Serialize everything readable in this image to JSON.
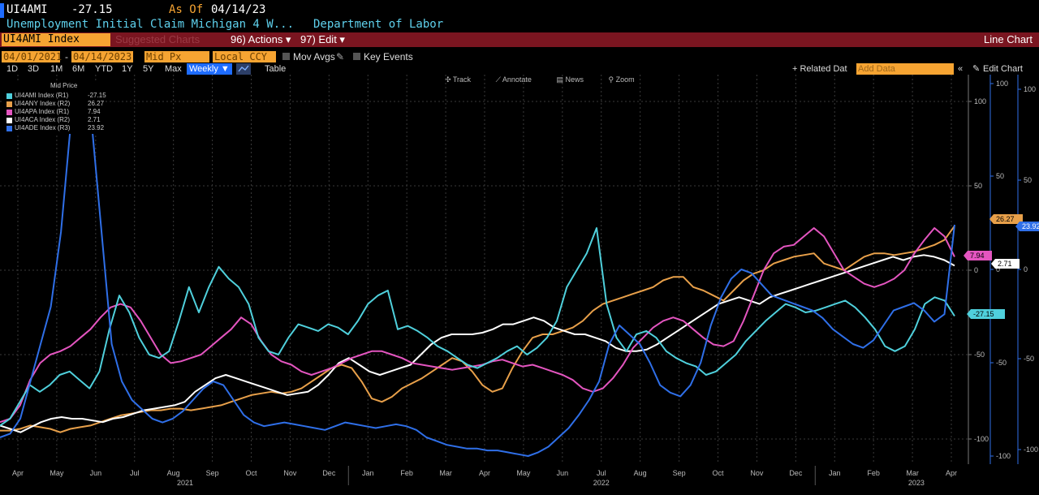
{
  "header": {
    "ticker": "UI4AMI",
    "last": "-27.15",
    "as_of_label": "As Of",
    "as_of_date": "04/14/23",
    "description": "Unemployment Initial Claim Michigan 4 W...",
    "source": "Department of Labor"
  },
  "toolbar": {
    "security": "UI4AMI Index",
    "suggested": "Suggested Charts",
    "actions": "96) Actions ▾",
    "edit": "97) Edit ▾",
    "chart_type": "Line Chart"
  },
  "controls": {
    "start_date": "04/01/2021",
    "end_date": "04/14/2023",
    "price_type": "Mid Px",
    "currency": "Local CCY",
    "mov_avgs": "Mov Avgs",
    "key_events": "Key Events",
    "related_data": "+ Related Dat",
    "add_data_placeholder": "Add Data",
    "edit_chart": "Edit Chart"
  },
  "ranges": [
    "1D",
    "3D",
    "1M",
    "6M",
    "YTD",
    "1Y",
    "5Y",
    "Max"
  ],
  "frequency": "Weekly ▼",
  "table_label": "Table",
  "tools": [
    "Track",
    "Annotate",
    "News",
    "Zoom"
  ],
  "legend_header": "Mid Price",
  "colors": {
    "UI4AMI": "#4fd0dc",
    "UI4ANY": "#e8a04a",
    "UI4APA": "#e455c0",
    "UI4ACA": "#ffffff",
    "UI4ADE": "#2f6fe8",
    "accent": "#f6a432",
    "toolbar": "#7a1520"
  },
  "chart_data": {
    "type": "line",
    "x_ticks": [
      "Apr",
      "May",
      "Jun",
      "Jul",
      "Aug",
      "Sep",
      "Oct",
      "Nov",
      "Dec",
      "Jan",
      "Feb",
      "Mar",
      "Apr",
      "May",
      "Jun",
      "Jul",
      "Aug",
      "Sep",
      "Oct",
      "Nov",
      "Dec",
      "Jan",
      "Feb",
      "Mar",
      "Apr"
    ],
    "years": [
      "2021",
      "2022",
      "2023"
    ],
    "axes": {
      "R1": {
        "ylim": [
          -100,
          100
        ],
        "ticks": [
          100,
          50,
          0,
          -50,
          -100
        ]
      },
      "R2": {
        "ylim": [
          -100,
          100
        ],
        "ticks": [
          100,
          50,
          0,
          -50,
          -100
        ]
      },
      "R3": {
        "ylim": [
          -100,
          100
        ],
        "ticks": [
          100,
          50,
          0,
          -50,
          -100
        ]
      }
    },
    "series": [
      {
        "name": "UI4AMI Index (R1)",
        "last": "-27.15",
        "key": "UI4AMI",
        "values": [
          -92,
          -88,
          -78,
          -68,
          -72,
          -68,
          -62,
          -60,
          -65,
          -70,
          -60,
          -35,
          -15,
          -25,
          -40,
          -50,
          -52,
          -48,
          -30,
          -10,
          -25,
          -10,
          2,
          -5,
          -10,
          -20,
          -40,
          -48,
          -50,
          -40,
          -32,
          -34,
          -36,
          -32,
          -34,
          -38,
          -30,
          -20,
          -15,
          -12,
          -35,
          -33,
          -36,
          -40,
          -45,
          -48,
          -52,
          -56,
          -58,
          -55,
          -52,
          -48,
          -45,
          -50,
          -46,
          -40,
          -30,
          -10,
          0,
          10,
          25,
          -20,
          -40,
          -48,
          -38,
          -36,
          -40,
          -48,
          -52,
          -55,
          -57,
          -62,
          -60,
          -55,
          -50,
          -42,
          -36,
          -30,
          -25,
          -20,
          -22,
          -25,
          -24,
          -22,
          -20,
          -18,
          -22,
          -28,
          -35,
          -45,
          -48,
          -45,
          -35,
          -20,
          -16,
          -18,
          -27.15
        ]
      },
      {
        "name": "UI4ANY Index (R2)",
        "last": "26.27",
        "key": "UI4ANY",
        "values": [
          -95,
          -95,
          -94,
          -92,
          -93,
          -94,
          -96,
          -94,
          -93,
          -92,
          -90,
          -88,
          -86,
          -85,
          -84,
          -83,
          -83,
          -82,
          -82,
          -83,
          -82,
          -81,
          -80,
          -78,
          -76,
          -74,
          -73,
          -72,
          -73,
          -72,
          -70,
          -66,
          -62,
          -58,
          -56,
          -58,
          -66,
          -76,
          -78,
          -75,
          -70,
          -67,
          -64,
          -60,
          -56,
          -52,
          -54,
          -60,
          -68,
          -72,
          -70,
          -58,
          -48,
          -40,
          -38,
          -38,
          -36,
          -34,
          -30,
          -24,
          -20,
          -18,
          -16,
          -14,
          -12,
          -10,
          -6,
          -4,
          -4,
          -10,
          -12,
          -15,
          -18,
          -12,
          -6,
          -2,
          0,
          4,
          6,
          8,
          9,
          10,
          4,
          2,
          0,
          4,
          8,
          10,
          10,
          9,
          10,
          11,
          13,
          15,
          18,
          26.27
        ]
      },
      {
        "name": "UI4APA Index (R1)",
        "last": "7.94",
        "key": "UI4APA",
        "values": [
          -90,
          -88,
          -80,
          -65,
          -55,
          -50,
          -48,
          -45,
          -40,
          -35,
          -28,
          -22,
          -20,
          -22,
          -30,
          -40,
          -50,
          -55,
          -54,
          -52,
          -50,
          -45,
          -40,
          -35,
          -28,
          -32,
          -42,
          -50,
          -54,
          -56,
          -60,
          -62,
          -60,
          -58,
          -55,
          -52,
          -50,
          -48,
          -48,
          -50,
          -52,
          -55,
          -56,
          -57,
          -58,
          -59,
          -58,
          -57,
          -56,
          -54,
          -53,
          -55,
          -57,
          -56,
          -58,
          -60,
          -62,
          -65,
          -70,
          -72,
          -70,
          -64,
          -56,
          -46,
          -40,
          -34,
          -30,
          -28,
          -30,
          -35,
          -40,
          -44,
          -45,
          -42,
          -30,
          -15,
          0,
          10,
          14,
          15,
          20,
          25,
          20,
          10,
          0,
          -4,
          -8,
          -10,
          -8,
          -5,
          0,
          10,
          18,
          25,
          20,
          7.94
        ]
      },
      {
        "name": "UI4ACA Index (R2)",
        "last": "2.71",
        "key": "UI4ACA",
        "values": [
          -92,
          -94,
          -96,
          -93,
          -90,
          -88,
          -87,
          -88,
          -88,
          -89,
          -90,
          -88,
          -87,
          -85,
          -83,
          -82,
          -81,
          -80,
          -78,
          -72,
          -68,
          -64,
          -62,
          -64,
          -66,
          -68,
          -70,
          -72,
          -74,
          -73,
          -72,
          -68,
          -62,
          -55,
          -52,
          -56,
          -60,
          -62,
          -60,
          -58,
          -56,
          -50,
          -44,
          -40,
          -38,
          -38,
          -38,
          -37,
          -35,
          -32,
          -32,
          -30,
          -28,
          -30,
          -34,
          -36,
          -38,
          -38,
          -40,
          -42,
          -46,
          -48,
          -48,
          -47,
          -44,
          -40,
          -36,
          -32,
          -28,
          -24,
          -20,
          -18,
          -16,
          -18,
          -20,
          -16,
          -14,
          -12,
          -10,
          -8,
          -6,
          -4,
          -2,
          0,
          2,
          4,
          6,
          8,
          6,
          8,
          9,
          8,
          6,
          2.71
        ]
      },
      {
        "name": "UI4ADE Index (R3)",
        "last": "23.92",
        "key": "UI4ADE",
        "values": [
          -90,
          -88,
          -80,
          -60,
          -40,
          -20,
          20,
          80,
          100,
          80,
          20,
          -40,
          -60,
          -70,
          -75,
          -80,
          -82,
          -80,
          -76,
          -70,
          -64,
          -60,
          -62,
          -70,
          -78,
          -82,
          -84,
          -83,
          -82,
          -83,
          -84,
          -85,
          -86,
          -84,
          -82,
          -83,
          -84,
          -85,
          -84,
          -83,
          -84,
          -86,
          -90,
          -92,
          -94,
          -95,
          -96,
          -96,
          -97,
          -97,
          -98,
          -99,
          -100,
          -98,
          -95,
          -90,
          -85,
          -78,
          -70,
          -60,
          -40,
          -30,
          -35,
          -40,
          -50,
          -62,
          -66,
          -68,
          -62,
          -50,
          -30,
          -15,
          -5,
          0,
          -2,
          -8,
          -14,
          -16,
          -18,
          -20,
          -22,
          -26,
          -32,
          -36,
          -40,
          -42,
          -38,
          -30,
          -22,
          -20,
          -18,
          -22,
          -28,
          -24,
          23.92
        ]
      }
    ]
  }
}
